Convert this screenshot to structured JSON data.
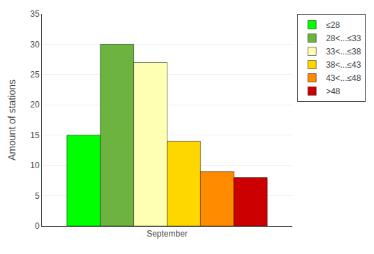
{
  "chart_data": {
    "type": "bar",
    "categories": [
      "September"
    ],
    "series": [
      {
        "name": "≤28",
        "color": "#00ff00",
        "values": [
          15
        ]
      },
      {
        "name": "28<...≤33",
        "color": "#6db33f",
        "values": [
          30
        ]
      },
      {
        "name": "33<...≤38",
        "color": "#ffffb3",
        "values": [
          27
        ]
      },
      {
        "name": "38<...≤43",
        "color": "#ffd700",
        "values": [
          14
        ]
      },
      {
        "name": "43<...≤48",
        "color": "#ff8c00",
        "values": [
          9
        ]
      },
      {
        "name": ">48",
        "color": "#cc0000",
        "values": [
          8
        ]
      }
    ],
    "ylabel": "Amount of stations",
    "ylim": [
      0,
      35
    ],
    "yticks": [
      0,
      5,
      10,
      15,
      20,
      25,
      30,
      35
    ],
    "grid": true,
    "legend": "upper right"
  }
}
